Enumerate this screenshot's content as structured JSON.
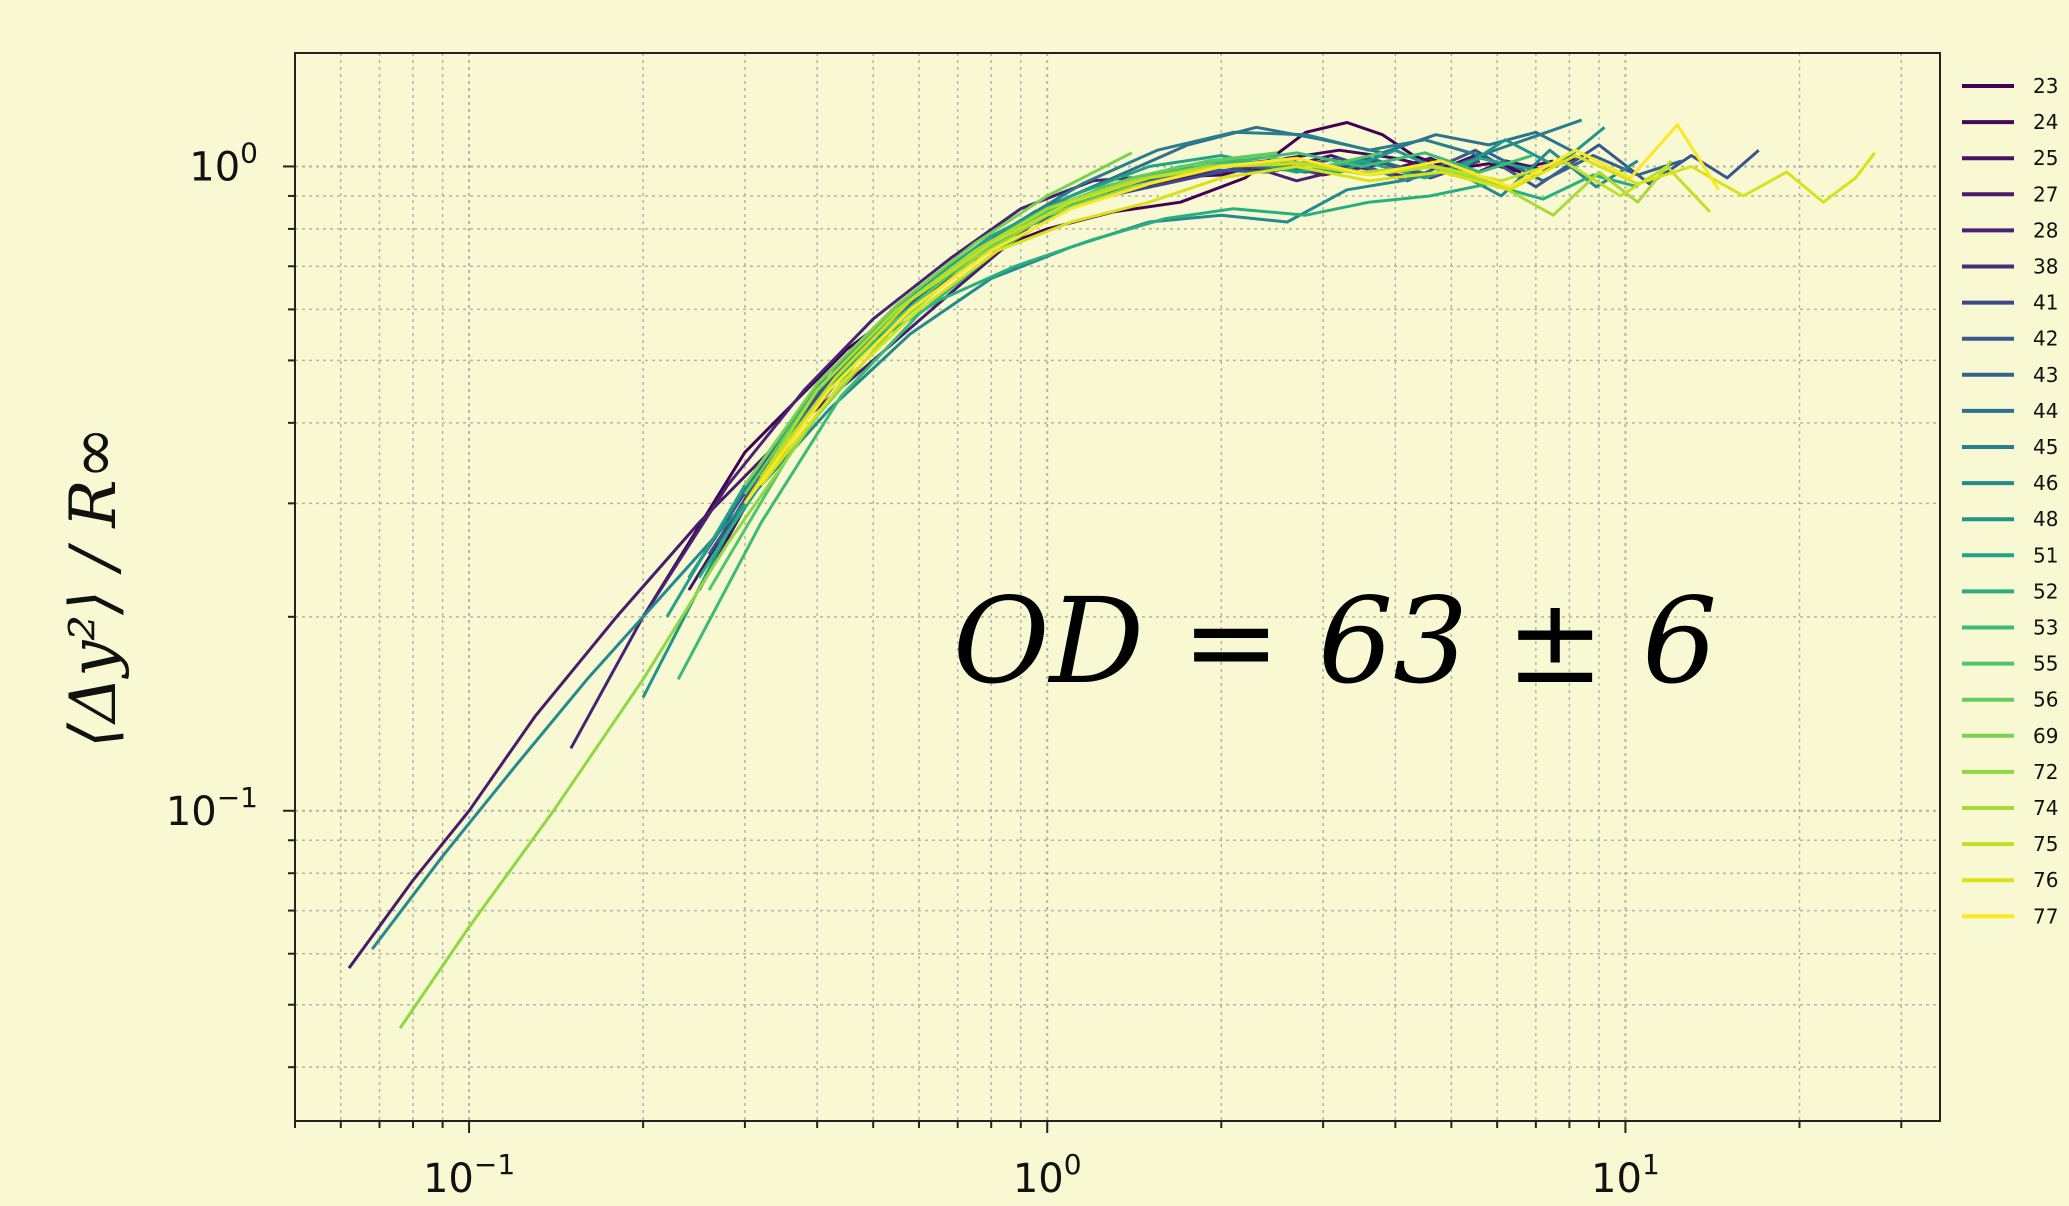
{
  "chart_data": {
    "type": "line",
    "x_scale": "log",
    "y_scale": "log",
    "xlim": [
      0.05,
      35
    ],
    "ylim": [
      0.033,
      1.5
    ],
    "grid": true,
    "legend_position": "right, outside plot",
    "xticks": [
      {
        "value": 0.1,
        "base": "10",
        "exp": "−1"
      },
      {
        "value": 1,
        "base": "10",
        "exp": "0"
      },
      {
        "value": 10,
        "base": "10",
        "exp": "1"
      }
    ],
    "yticks": [
      {
        "value": 0.1,
        "base": "10",
        "exp": "−1"
      },
      {
        "value": 1,
        "base": "10",
        "exp": "0"
      }
    ],
    "ylabel": "⟨Δy²⟩ / R∞",
    "annotation": "OD = 63 ± 6",
    "series": [
      {
        "name": "23",
        "color": "#440154",
        "x": [
          0.2,
          0.3,
          0.45,
          0.6,
          0.8,
          1.0,
          1.3,
          1.7,
          2.2,
          2.8,
          3.3,
          3.8,
          4.3,
          5.0,
          5.8,
          6.6
        ],
        "y": [
          0.2,
          0.36,
          0.52,
          0.63,
          0.74,
          0.8,
          0.85,
          0.88,
          0.96,
          1.13,
          1.17,
          1.12,
          1.04,
          0.99,
          1.01,
          0.98
        ]
      },
      {
        "name": "24",
        "color": "#46085c",
        "x": [
          0.25,
          0.35,
          0.5,
          0.65,
          0.85,
          1.1,
          1.5,
          2.0,
          2.6,
          3.2,
          4.0,
          4.8,
          5.5,
          6.5,
          7.5
        ],
        "y": [
          0.22,
          0.38,
          0.55,
          0.65,
          0.78,
          0.88,
          0.96,
          0.97,
          1.03,
          1.06,
          1.03,
          0.99,
          1.04,
          0.99,
          1.02
        ]
      },
      {
        "name": "25",
        "color": "#471164",
        "x": [
          0.24,
          0.33,
          0.45,
          0.6,
          0.8,
          1.0,
          1.4,
          1.9,
          2.5,
          3.1,
          3.8,
          4.6,
          5.4,
          6.2,
          7.2,
          8.2
        ],
        "y": [
          0.22,
          0.35,
          0.5,
          0.62,
          0.75,
          0.85,
          0.92,
          0.98,
          0.99,
          1.04,
          0.98,
          1.03,
          0.97,
          1.02,
          0.99,
          1.03
        ]
      },
      {
        "name": "27",
        "color": "#481b6d",
        "x": [
          0.062,
          0.08,
          0.1,
          0.13,
          0.18,
          0.25,
          0.35,
          0.5,
          0.7,
          0.95,
          1.3,
          1.8,
          2.4,
          3.0,
          3.8
        ],
        "y": [
          0.057,
          0.078,
          0.1,
          0.14,
          0.2,
          0.28,
          0.38,
          0.5,
          0.65,
          0.82,
          0.93,
          0.99,
          1.02,
          0.97,
          1.01
        ]
      },
      {
        "name": "28",
        "color": "#482374",
        "x": [
          0.15,
          0.2,
          0.28,
          0.38,
          0.5,
          0.68,
          0.9,
          1.2,
          1.6,
          2.1,
          2.7,
          3.4,
          4.3
        ],
        "y": [
          0.125,
          0.2,
          0.32,
          0.45,
          0.58,
          0.72,
          0.86,
          0.95,
          0.97,
          1.02,
          0.95,
          1.0,
          0.96
        ]
      },
      {
        "name": "38",
        "color": "#472c7a",
        "x": [
          0.24,
          0.34,
          0.48,
          0.65,
          0.88,
          1.2,
          1.6,
          2.1,
          2.7
        ],
        "y": [
          0.23,
          0.37,
          0.53,
          0.66,
          0.79,
          0.9,
          0.96,
          0.99,
          1.02
        ]
      },
      {
        "name": "41",
        "color": "#3f4889",
        "x": [
          0.26,
          0.36,
          0.5,
          0.68,
          0.9,
          1.2,
          1.6,
          2.2,
          2.9,
          3.7,
          4.6,
          5.6
        ],
        "y": [
          0.25,
          0.39,
          0.56,
          0.68,
          0.8,
          0.89,
          0.94,
          1.0,
          0.98,
          1.02,
          0.96,
          1.02
        ]
      },
      {
        "name": "42",
        "color": "#38588c",
        "x": [
          0.27,
          0.38,
          0.52,
          0.7,
          0.95,
          1.3,
          1.8,
          2.4,
          3.2,
          4.2,
          5.5,
          7.0,
          9.0,
          11.0,
          13.0,
          15.0,
          17.0
        ],
        "y": [
          0.26,
          0.4,
          0.57,
          0.7,
          0.84,
          0.93,
          0.99,
          0.98,
          1.03,
          0.95,
          1.06,
          0.93,
          1.08,
          0.94,
          1.04,
          0.96,
          1.06
        ]
      },
      {
        "name": "43",
        "color": "#32648e",
        "x": [
          0.27,
          0.36,
          0.5,
          0.67,
          0.9,
          1.2,
          1.6,
          2.1,
          2.8,
          3.6,
          4.6,
          5.8,
          7.2,
          8.8,
          10.5,
          12.5
        ],
        "y": [
          0.26,
          0.38,
          0.55,
          0.68,
          0.8,
          0.9,
          0.96,
          1.01,
          0.98,
          1.03,
          0.97,
          1.05,
          0.95,
          1.04,
          0.97,
          1.02
        ]
      },
      {
        "name": "44",
        "color": "#2d718e",
        "x": [
          0.28,
          0.38,
          0.52,
          0.7,
          0.95,
          1.3,
          1.75,
          2.3,
          3.0,
          3.8,
          4.7,
          5.8,
          7.0,
          8.2
        ],
        "y": [
          0.27,
          0.41,
          0.58,
          0.71,
          0.85,
          0.96,
          1.08,
          1.15,
          1.1,
          1.05,
          1.12,
          1.08,
          1.13,
          1.05
        ]
      },
      {
        "name": "45",
        "color": "#287d8e",
        "x": [
          0.24,
          0.33,
          0.46,
          0.62,
          0.85,
          1.15,
          1.55,
          2.1,
          2.8,
          3.6,
          4.5,
          5.6,
          6.9,
          8.4
        ],
        "y": [
          0.23,
          0.36,
          0.52,
          0.65,
          0.8,
          0.94,
          1.06,
          1.13,
          1.12,
          1.06,
          1.1,
          1.04,
          1.11,
          1.18
        ]
      },
      {
        "name": "46",
        "color": "#238a8d",
        "x": [
          0.068,
          0.09,
          0.12,
          0.16,
          0.22,
          0.3,
          0.42,
          0.58,
          0.8,
          1.1,
          1.5,
          2.0,
          2.6,
          3.3,
          4.1,
          5.0,
          6.1,
          7.4,
          8.9,
          10.5
        ],
        "y": [
          0.061,
          0.085,
          0.117,
          0.16,
          0.22,
          0.3,
          0.42,
          0.55,
          0.67,
          0.75,
          0.82,
          0.84,
          0.82,
          0.92,
          0.95,
          0.99,
          0.9,
          1.06,
          0.93,
          1.02
        ]
      },
      {
        "name": "48",
        "color": "#1f968b",
        "x": [
          0.2,
          0.28,
          0.4,
          0.55,
          0.75,
          1.0,
          1.4,
          1.9,
          2.5,
          3.2,
          4.0,
          5.0,
          6.2,
          7.6,
          9.2
        ],
        "y": [
          0.15,
          0.27,
          0.43,
          0.58,
          0.74,
          0.85,
          0.95,
          1.02,
          1.0,
          0.98,
          1.06,
          0.97,
          1.1,
          1.0,
          1.15
        ]
      },
      {
        "name": "51",
        "color": "#20a386",
        "x": [
          0.22,
          0.3,
          0.42,
          0.58,
          0.8,
          1.1,
          1.5,
          2.0,
          2.7,
          3.5,
          4.5,
          5.6,
          6.9
        ],
        "y": [
          0.2,
          0.32,
          0.48,
          0.63,
          0.78,
          0.9,
          1.0,
          1.04,
          0.98,
          1.02,
          0.96,
          1.03,
          0.99
        ]
      },
      {
        "name": "52",
        "color": "#29af7f",
        "x": [
          0.25,
          0.35,
          0.48,
          0.65,
          0.88,
          1.2,
          1.6,
          2.1,
          2.8,
          3.6,
          4.6,
          5.8,
          7.2,
          8.8,
          10.5
        ],
        "y": [
          0.23,
          0.37,
          0.52,
          0.62,
          0.7,
          0.77,
          0.83,
          0.86,
          0.84,
          0.88,
          0.9,
          0.94,
          0.89,
          0.97,
          0.93
        ]
      },
      {
        "name": "53",
        "color": "#3bbb75",
        "x": [
          0.23,
          0.32,
          0.44,
          0.6,
          0.82,
          1.1,
          1.5,
          2.0,
          2.7,
          3.5,
          4.5,
          5.6,
          6.9
        ],
        "y": [
          0.16,
          0.28,
          0.44,
          0.59,
          0.74,
          0.87,
          0.97,
          1.01,
          1.05,
          1.0,
          1.05,
          0.98,
          1.04
        ]
      },
      {
        "name": "55",
        "color": "#51c569",
        "x": [
          0.26,
          0.36,
          0.5,
          0.68,
          0.92,
          1.25,
          1.7,
          2.3,
          3.0,
          3.8
        ],
        "y": [
          0.22,
          0.36,
          0.54,
          0.68,
          0.82,
          0.93,
          1.0,
          1.04,
          1.0,
          1.05
        ]
      },
      {
        "name": "56",
        "color": "#65cb5e",
        "x": [
          0.3,
          0.4,
          0.55,
          0.74,
          1.0,
          1.4,
          1.9,
          2.5
        ],
        "y": [
          0.31,
          0.45,
          0.6,
          0.73,
          0.86,
          0.96,
          1.02,
          1.05
        ]
      },
      {
        "name": "69",
        "color": "#7ad151",
        "x": [
          0.3,
          0.4,
          0.55,
          0.75,
          1.0,
          1.4
        ],
        "y": [
          0.32,
          0.46,
          0.61,
          0.76,
          0.9,
          1.05
        ]
      },
      {
        "name": "72",
        "color": "#8fd744",
        "x": [
          0.076,
          0.1,
          0.14,
          0.2,
          0.28,
          0.4,
          0.55,
          0.75,
          1.0,
          1.4,
          2.0
        ],
        "y": [
          0.046,
          0.066,
          0.1,
          0.16,
          0.26,
          0.41,
          0.57,
          0.72,
          0.84,
          0.93,
          1.0
        ]
      },
      {
        "name": "74",
        "color": "#a8db34",
        "x": [
          0.3,
          0.4,
          0.55,
          0.75,
          1.0,
          1.4,
          1.9,
          2.6,
          3.5,
          4.6,
          6.0,
          7.5,
          9.0,
          10.5,
          12.0
        ],
        "y": [
          0.3,
          0.45,
          0.6,
          0.74,
          0.86,
          0.95,
          1.0,
          1.02,
          0.98,
          1.0,
          0.94,
          0.84,
          0.98,
          0.88,
          1.02
        ]
      },
      {
        "name": "75",
        "color": "#c0df25",
        "x": [
          0.32,
          0.43,
          0.58,
          0.8,
          1.1,
          1.5,
          2.0,
          2.7,
          3.6,
          4.7,
          6.1,
          7.8,
          9.8,
          11.8,
          14.0
        ],
        "y": [
          0.33,
          0.47,
          0.62,
          0.76,
          0.88,
          0.96,
          1.0,
          1.01,
          0.97,
          1.0,
          0.95,
          1.02,
          0.9,
          1.0,
          0.85
        ]
      },
      {
        "name": "76",
        "color": "#d8e219",
        "x": [
          0.32,
          0.44,
          0.6,
          0.82,
          1.1,
          1.5,
          2.0,
          2.7,
          3.6,
          4.8,
          6.3,
          8.2,
          10.5,
          13.0,
          16.0,
          19.0,
          22.0,
          25.0,
          27.0
        ],
        "y": [
          0.32,
          0.46,
          0.6,
          0.74,
          0.82,
          0.88,
          0.96,
          1.0,
          0.95,
          0.98,
          0.92,
          1.04,
          0.94,
          1.0,
          0.9,
          0.98,
          0.88,
          0.96,
          1.05
        ]
      },
      {
        "name": "77",
        "color": "#fde725",
        "x": [
          0.3,
          0.42,
          0.58,
          0.8,
          1.1,
          1.5,
          2.0,
          2.7,
          3.6,
          4.8,
          6.3,
          8.2,
          10.2,
          12.3,
          14.5
        ],
        "y": [
          0.3,
          0.45,
          0.6,
          0.74,
          0.86,
          0.94,
          1.0,
          1.03,
          0.97,
          1.02,
          0.93,
          1.06,
          0.96,
          1.16,
          0.92
        ]
      }
    ]
  }
}
